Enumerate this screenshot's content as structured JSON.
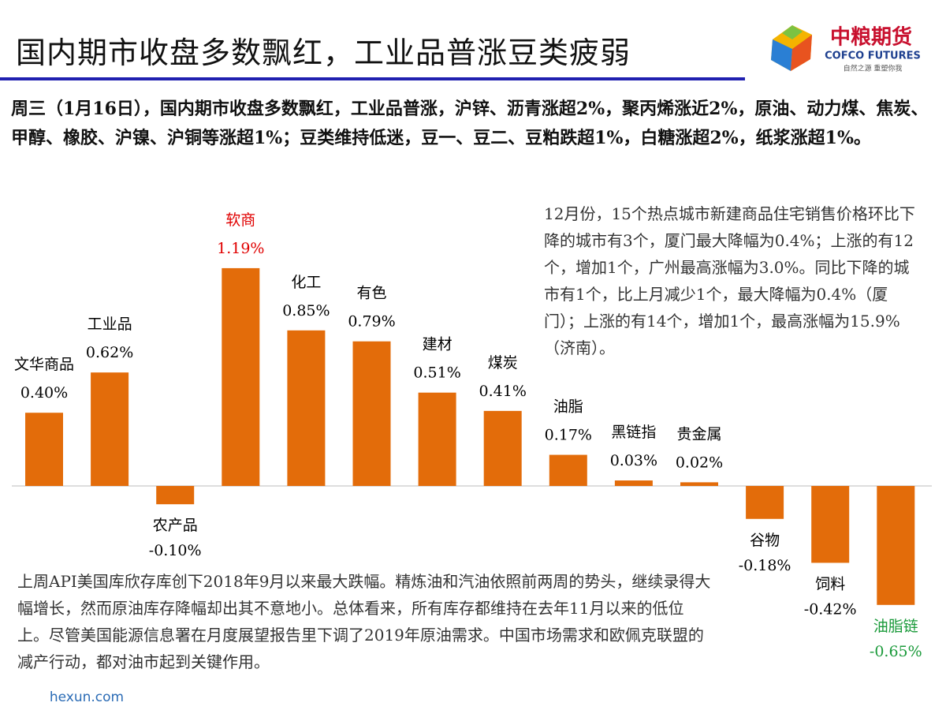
{
  "title": "国内期市收盘多数飘红，工业品普涨豆类疲弱",
  "logo": {
    "name": "中粮期货",
    "english": "COFCO FUTURES",
    "slogan": "自然之源 重塑你我"
  },
  "summary": "周三（1月16日），国内期市收盘多数飘红，工业品普涨，沪锌、沥青涨超2%，聚丙烯涨近2%，原油、动力煤、焦炭、甲醇、橡胶、沪镍、沪铜等涨超1%；豆类维持低迷，豆一、豆二、豆粕跌超1%，白糖涨超2%，纸浆涨超1%。",
  "note_right": "12月份，15个热点城市新建商品住宅销售价格环比下降的城市有3个，厦门最大降幅为0.4%；上涨的有12个，增加1个，广州最高涨幅为3.0%。同比下降的城市有1个，比上月减少1个，最大降幅为0.4%（厦门）；上涨的有14个，增加1个，最高涨幅为15.9%（济南）。",
  "note_bottom": "上周API美国库欣存库创下2018年9月以来最大跌幅。精炼油和汽油依照前两周的势头，继续录得大幅增长，然而原油库存降幅却出其不意地小。总体看来，所有库存都维持在去年11月以来的低位上。尽管美国能源信息署在月度展望报告里下调了2019年原油需求。中国市场需求和欧佩克联盟的减产行动，都对油市起到关键作用。",
  "watermark": "hexun.com",
  "chart_data": {
    "type": "bar",
    "categories": [
      "文华商品",
      "工业品",
      "农产品",
      "软商",
      "化工",
      "有色",
      "建材",
      "煤炭",
      "油脂",
      "黑链指",
      "贵金属",
      "谷物",
      "饲料",
      "油脂链"
    ],
    "values": [
      0.4,
      0.62,
      -0.1,
      1.19,
      0.85,
      0.79,
      0.51,
      0.41,
      0.17,
      0.03,
      0.02,
      -0.18,
      -0.42,
      -0.65
    ],
    "value_labels": [
      "0.40%",
      "0.62%",
      "-0.10%",
      "1.19%",
      "0.85%",
      "0.79%",
      "0.51%",
      "0.41%",
      "0.17%",
      "0.03%",
      "0.02%",
      "-0.18%",
      "-0.42%",
      "-0.65%"
    ],
    "color": "#e36c0a",
    "label_colors": [
      "#000000",
      "#000000",
      "#000000",
      "#e00000",
      "#000000",
      "#000000",
      "#000000",
      "#000000",
      "#000000",
      "#000000",
      "#000000",
      "#000000",
      "#000000",
      "#1a9a3a"
    ]
  }
}
